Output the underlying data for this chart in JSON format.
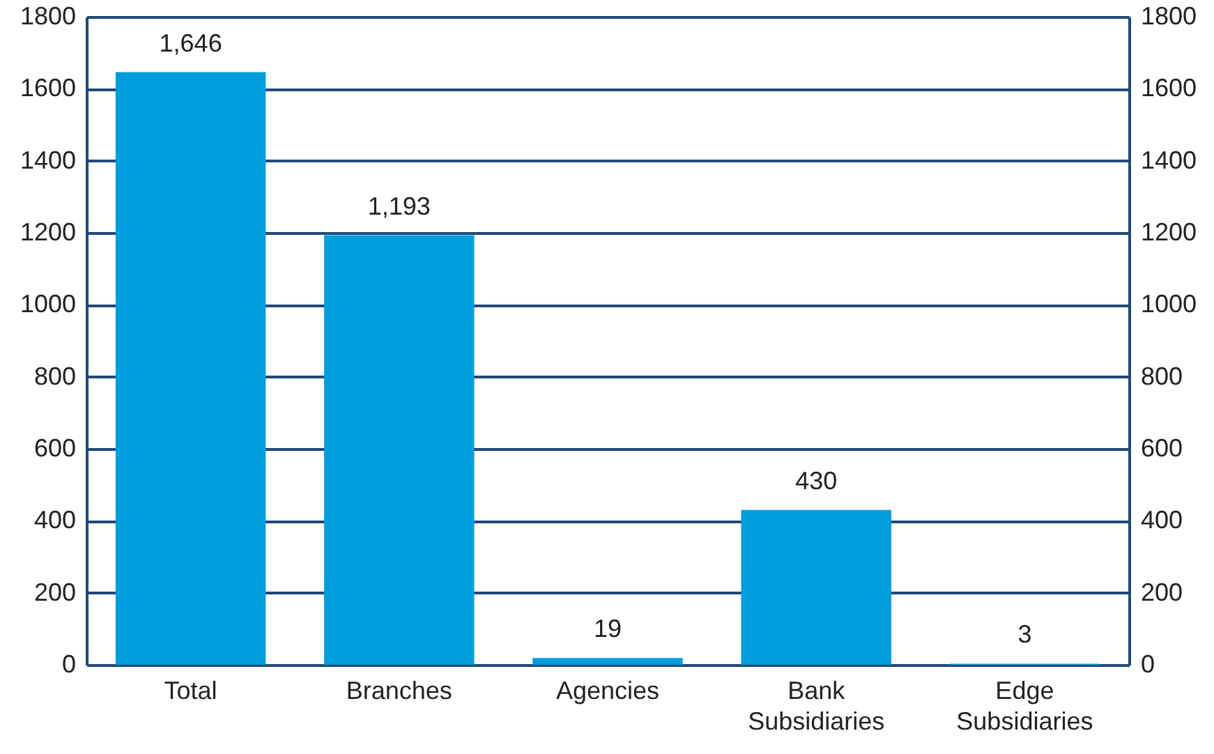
{
  "chart_data": {
    "type": "bar",
    "categories": [
      "Total",
      "Branches",
      "Agencies",
      "Bank Subsidiaries",
      "Edge Subsidiaries"
    ],
    "values": [
      1646,
      1193,
      19,
      430,
      3
    ],
    "value_labels": [
      "1,646",
      "1,193",
      "19",
      "430",
      "3"
    ],
    "color": "#009ddc",
    "ylim": [
      0,
      1800
    ],
    "yticks": [
      0,
      200,
      400,
      600,
      800,
      1000,
      1200,
      1400,
      1600,
      1800
    ],
    "y2lim": [
      0,
      1800
    ],
    "y2ticks": [
      0,
      200,
      400,
      600,
      800,
      1000,
      1200,
      1400,
      1600,
      1800
    ],
    "grid": "y"
  }
}
